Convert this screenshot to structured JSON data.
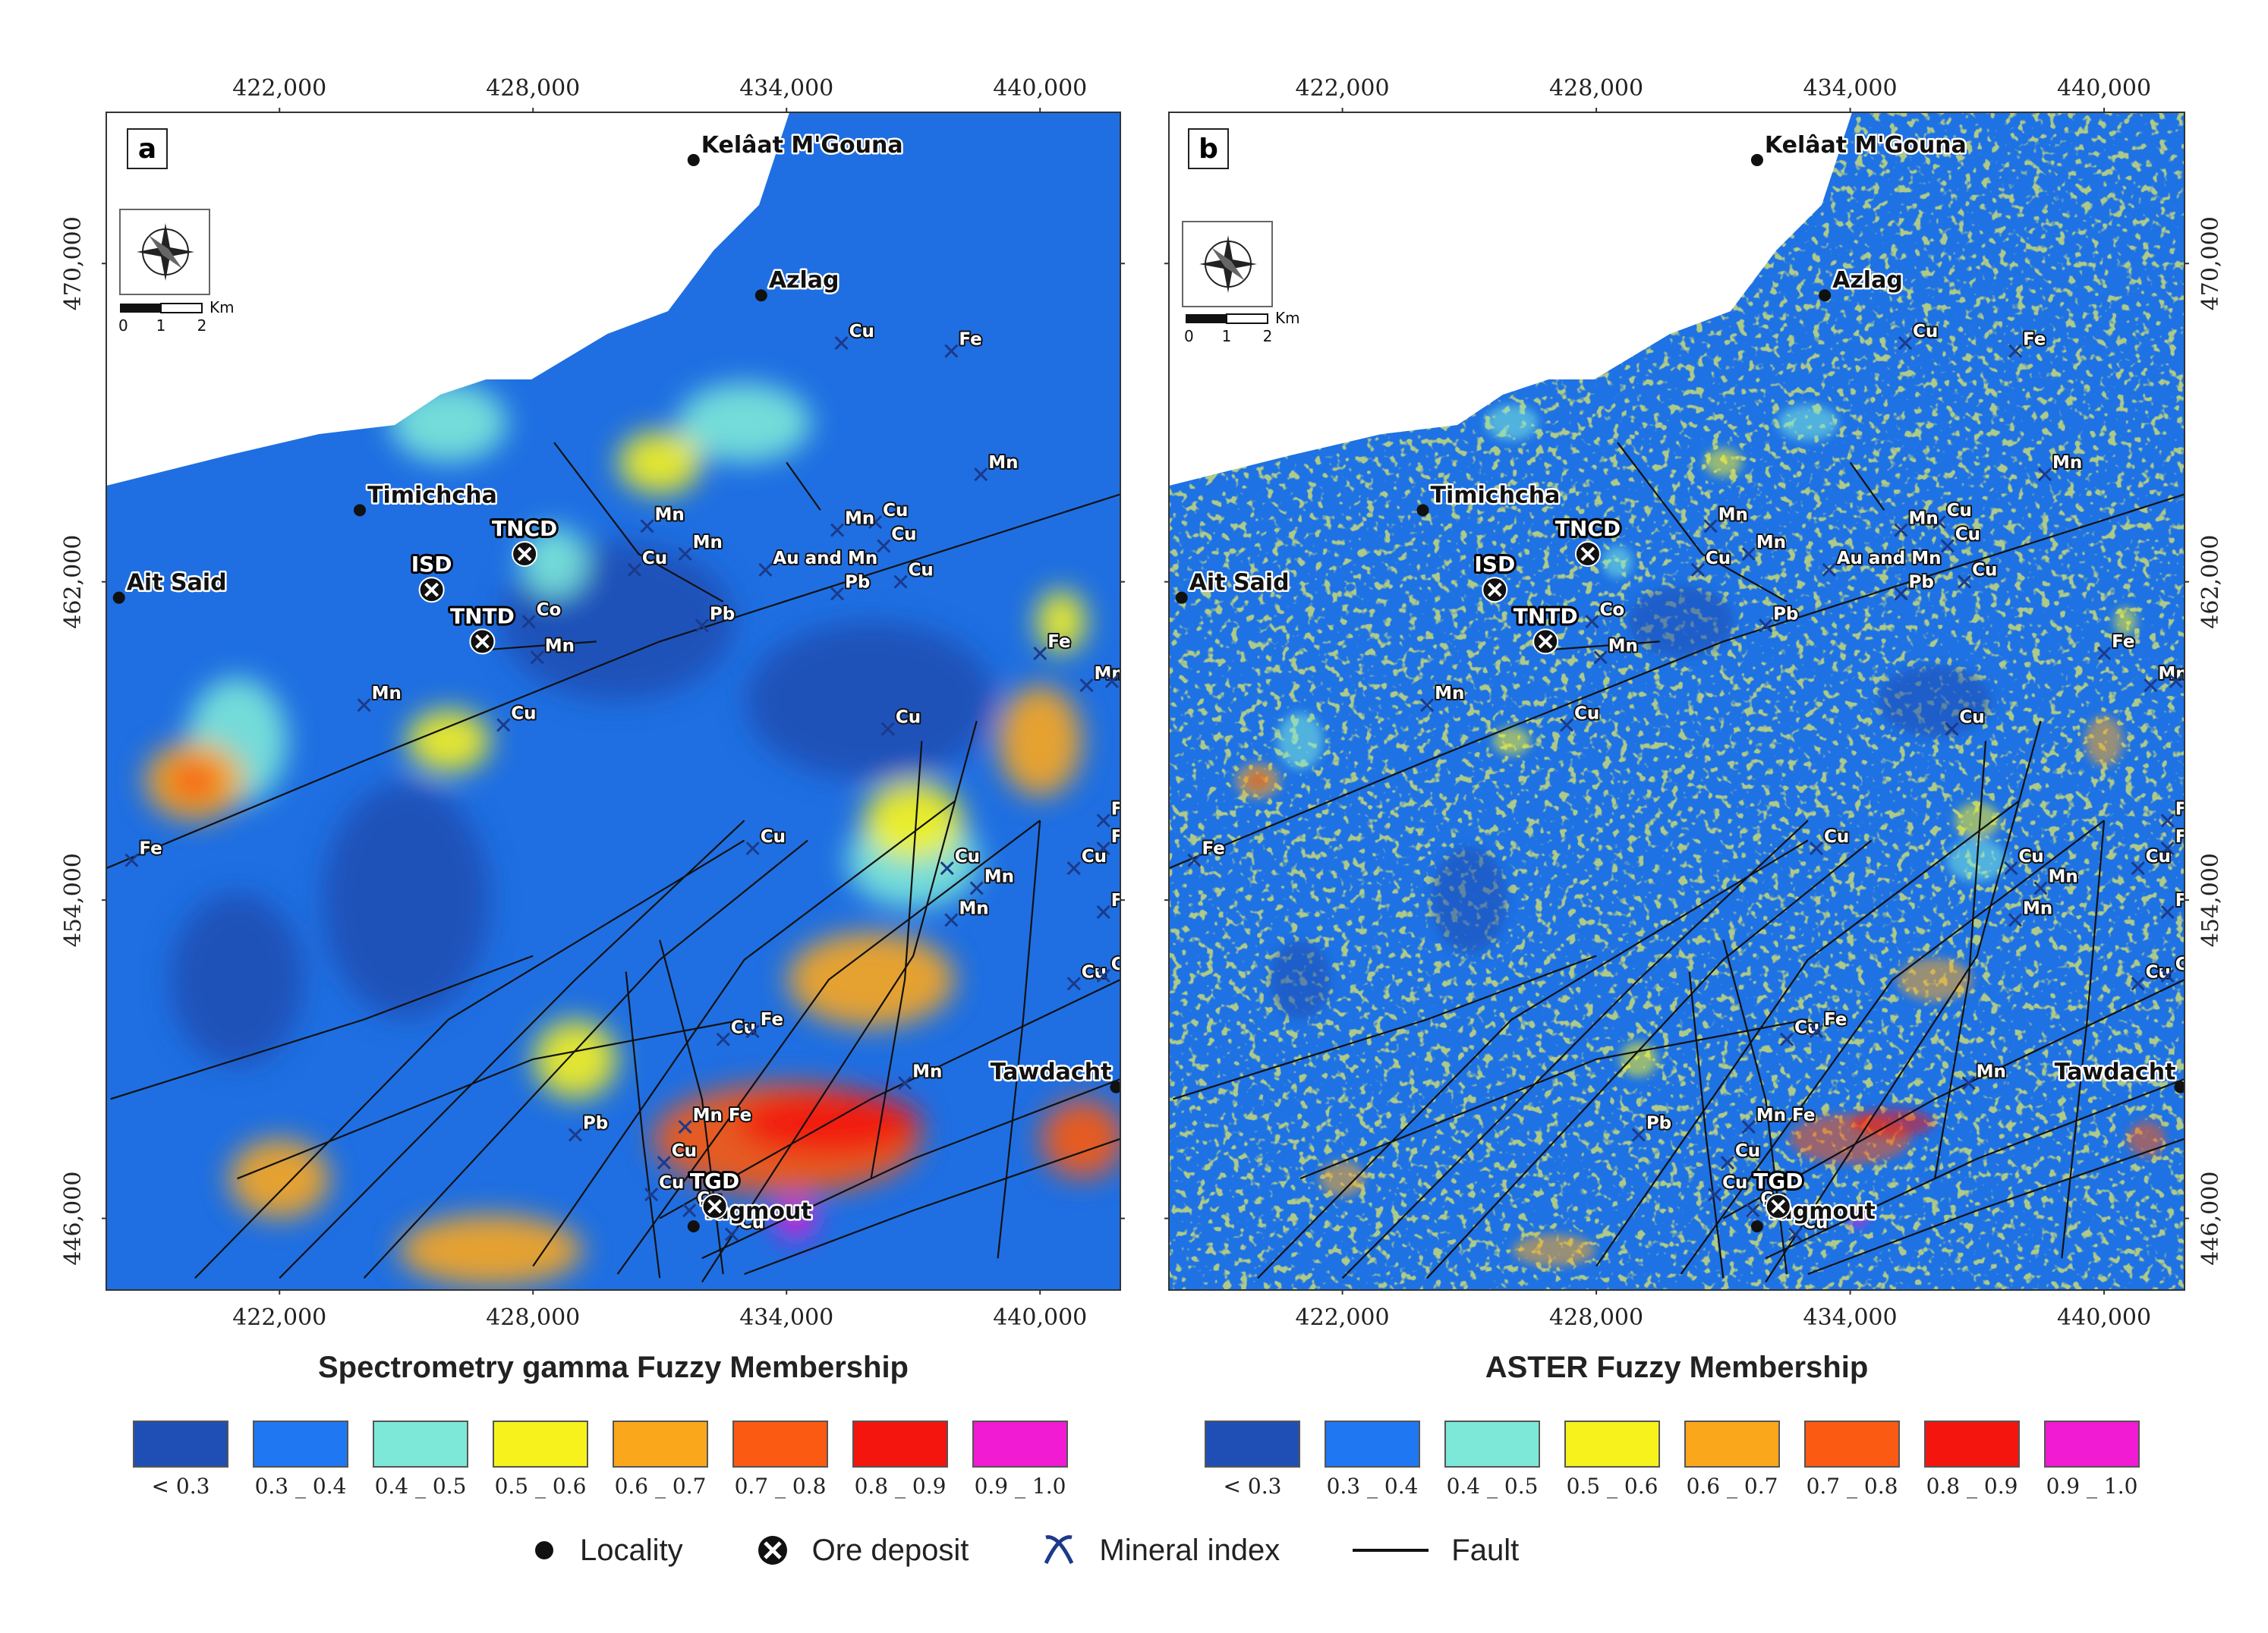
{
  "x_ticks": [
    "422,000",
    "428,000",
    "434,000",
    "440,000"
  ],
  "y_ticks": [
    "470,000",
    "462,000",
    "454,000",
    "446,000"
  ],
  "panels": [
    {
      "letter": "a",
      "title": "Spectrometry gamma Fuzzy Membership",
      "palette_style": "smooth"
    },
    {
      "letter": "b",
      "title": "ASTER Fuzzy Membership",
      "palette_style": "speckled"
    }
  ],
  "scale_bar": {
    "unit": "Km",
    "labels": [
      "0",
      "1",
      "2"
    ]
  },
  "localities": [
    {
      "name": "Kelâat M'Gouna",
      "xk": 431.8,
      "yk": 472.6
    },
    {
      "name": "Azlag",
      "xk": 433.4,
      "yk": 469.2
    },
    {
      "name": "Timichcha",
      "xk": 423.9,
      "yk": 463.8
    },
    {
      "name": "Ait Said",
      "xk": 418.2,
      "yk": 461.6
    },
    {
      "name": "Tawdacht",
      "xk": 441.8,
      "yk": 449.3
    },
    {
      "name": "Tagmout",
      "xk": 431.8,
      "yk": 445.8
    }
  ],
  "ore_deposits": [
    {
      "name": "TNCD",
      "xk": 427.8,
      "yk": 462.7
    },
    {
      "name": "ISD",
      "xk": 425.6,
      "yk": 461.8
    },
    {
      "name": "TNTD",
      "xk": 426.8,
      "yk": 460.5
    },
    {
      "name": "TGD",
      "xk": 432.3,
      "yk": 446.3
    }
  ],
  "mineral_indexes": [
    {
      "name": "Cu",
      "xk": 435.3,
      "yk": 468.0
    },
    {
      "name": "Fe",
      "xk": 437.9,
      "yk": 467.8
    },
    {
      "name": "Mn",
      "xk": 438.6,
      "yk": 464.7
    },
    {
      "name": "Cu",
      "xk": 436.1,
      "yk": 463.5
    },
    {
      "name": "Mn",
      "xk": 435.2,
      "yk": 463.3
    },
    {
      "name": "Cu",
      "xk": 436.3,
      "yk": 462.9
    },
    {
      "name": "Mn",
      "xk": 430.7,
      "yk": 463.4
    },
    {
      "name": "Mn",
      "xk": 431.6,
      "yk": 462.7
    },
    {
      "name": "Au and Mn",
      "xk": 433.5,
      "yk": 462.3
    },
    {
      "name": "Cu",
      "xk": 436.7,
      "yk": 462.0
    },
    {
      "name": "Cu",
      "xk": 430.4,
      "yk": 462.3
    },
    {
      "name": "Pb",
      "xk": 435.2,
      "yk": 461.7
    },
    {
      "name": "Co",
      "xk": 427.9,
      "yk": 461.0
    },
    {
      "name": "Pb",
      "xk": 432.0,
      "yk": 460.9
    },
    {
      "name": "Mn",
      "xk": 428.1,
      "yk": 460.1
    },
    {
      "name": "Fe",
      "xk": 440.0,
      "yk": 460.2
    },
    {
      "name": "Mn",
      "xk": 441.1,
      "yk": 459.4
    },
    {
      "name": "Fe",
      "xk": 441.7,
      "yk": 459.5
    },
    {
      "name": "Mn",
      "xk": 424.0,
      "yk": 458.9
    },
    {
      "name": "Cu",
      "xk": 427.3,
      "yk": 458.4
    },
    {
      "name": "Cu",
      "xk": 436.4,
      "yk": 458.3
    },
    {
      "name": "FL",
      "xk": 441.5,
      "yk": 456.0
    },
    {
      "name": "FL",
      "xk": 441.5,
      "yk": 455.3
    },
    {
      "name": "Cu",
      "xk": 433.2,
      "yk": 455.3
    },
    {
      "name": "Cu",
      "xk": 437.8,
      "yk": 454.8
    },
    {
      "name": "Mn",
      "xk": 438.5,
      "yk": 454.3
    },
    {
      "name": "Cu",
      "xk": 440.8,
      "yk": 454.8
    },
    {
      "name": "Mn",
      "xk": 437.9,
      "yk": 453.5
    },
    {
      "name": "FL",
      "xk": 441.5,
      "yk": 453.7
    },
    {
      "name": "Cu",
      "xk": 440.8,
      "yk": 451.9
    },
    {
      "name": "Cu",
      "xk": 441.5,
      "yk": 452.1
    },
    {
      "name": "Cu",
      "xk": 432.5,
      "yk": 450.5
    },
    {
      "name": "Fe",
      "xk": 433.2,
      "yk": 450.7
    },
    {
      "name": "Mn",
      "xk": 436.8,
      "yk": 449.4
    },
    {
      "name": "Pb",
      "xk": 429.0,
      "yk": 448.1
    },
    {
      "name": "Mn Fe",
      "xk": 431.6,
      "yk": 448.3
    },
    {
      "name": "Cu",
      "xk": 431.1,
      "yk": 447.4
    },
    {
      "name": "Cu",
      "xk": 430.8,
      "yk": 446.6
    },
    {
      "name": "Cu",
      "xk": 431.7,
      "yk": 446.2
    },
    {
      "name": "Cu",
      "xk": 432.7,
      "yk": 445.6
    },
    {
      "name": "Fe",
      "xk": 418.5,
      "yk": 455.0
    }
  ],
  "legend_classes": [
    {
      "label": "< 0.3",
      "color": "#1f4fb5"
    },
    {
      "label": "0.3 _ 0.4",
      "color": "#1f78f2"
    },
    {
      "label": "0.4 _ 0.5",
      "color": "#7de8d8"
    },
    {
      "label": "0.5 _ 0.6",
      "color": "#f7f21c"
    },
    {
      "label": "0.6 _ 0.7",
      "color": "#fba71c"
    },
    {
      "label": "0.7 _ 0.8",
      "color": "#fb5a12"
    },
    {
      "label": "0.8 _ 0.9",
      "color": "#f3150e"
    },
    {
      "label": "0.9 _ 1.0",
      "color": "#f01bd2"
    }
  ],
  "symbol_legend": {
    "locality": "Locality",
    "ore_deposit": "Ore deposit",
    "mineral_index": "Mineral index",
    "fault": "Fault"
  },
  "colors": {
    "fault": "#111111",
    "background": "#ffffff"
  }
}
